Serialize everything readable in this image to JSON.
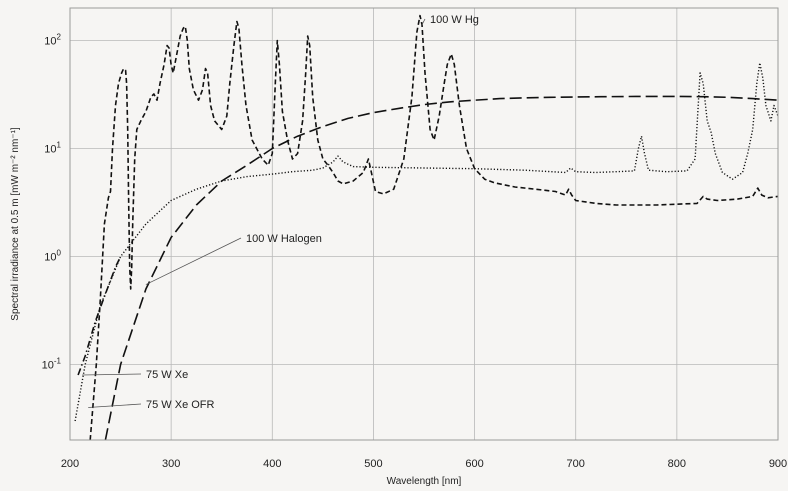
{
  "colors": {
    "background": "#f6f5f3",
    "grid": "#b8b8b8",
    "frame": "#9a9a9a",
    "line": "#111111"
  },
  "chart_data": {
    "type": "line",
    "title": "",
    "xlabel": "Wavelength [nm]",
    "ylabel": "Spectral irradiance at 0.5 m [mW m⁻² nm⁻¹]",
    "xlim": [
      200,
      900
    ],
    "ylim": [
      0.02,
      200
    ],
    "yscale": "log",
    "grid": true,
    "x_ticks": [
      "200",
      "300",
      "400",
      "500",
      "600",
      "700",
      "800",
      "900"
    ],
    "y_ticks": [
      {
        "value": 0.1,
        "base": "10",
        "exp": "-1"
      },
      {
        "value": 1,
        "base": "10",
        "exp": "0"
      },
      {
        "value": 10,
        "base": "10",
        "exp": "1"
      },
      {
        "value": 100,
        "base": "10",
        "exp": "2"
      }
    ],
    "annotations": [
      {
        "text": "100 W Hg",
        "series": "100 W Hg"
      },
      {
        "text": "100 W Halogen",
        "series": "100 W Halogen"
      },
      {
        "text": "75 W Xe",
        "series": "75 W Xe"
      },
      {
        "text": "75 W Xe OFR",
        "series": "75 W Xe OFR"
      }
    ],
    "series": [
      {
        "name": "100 W Hg",
        "dash": "dashed",
        "points": [
          [
            220,
            0.02
          ],
          [
            226,
            0.1
          ],
          [
            230,
            0.4
          ],
          [
            234,
            2
          ],
          [
            238,
            3.5
          ],
          [
            240,
            4
          ],
          [
            242,
            10
          ],
          [
            245,
            25
          ],
          [
            248,
            40
          ],
          [
            251,
            50
          ],
          [
            253,
            55
          ],
          [
            255,
            53
          ],
          [
            256,
            40
          ],
          [
            257,
            15
          ],
          [
            258,
            3
          ],
          [
            259,
            0.8
          ],
          [
            260,
            0.5
          ],
          [
            261,
            0.8
          ],
          [
            262,
            2
          ],
          [
            264,
            8
          ],
          [
            266,
            15
          ],
          [
            270,
            18
          ],
          [
            275,
            22
          ],
          [
            280,
            30
          ],
          [
            283,
            32
          ],
          [
            286,
            28
          ],
          [
            289,
            40
          ],
          [
            293,
            60
          ],
          [
            296,
            90
          ],
          [
            298,
            85
          ],
          [
            300,
            60
          ],
          [
            302,
            50
          ],
          [
            305,
            70
          ],
          [
            309,
            110
          ],
          [
            312,
            130
          ],
          [
            314,
            135
          ],
          [
            316,
            100
          ],
          [
            318,
            55
          ],
          [
            322,
            35
          ],
          [
            327,
            28
          ],
          [
            331,
            35
          ],
          [
            334,
            55
          ],
          [
            336,
            50
          ],
          [
            339,
            25
          ],
          [
            343,
            18
          ],
          [
            350,
            15
          ],
          [
            355,
            20
          ],
          [
            358,
            40
          ],
          [
            362,
            90
          ],
          [
            365,
            150
          ],
          [
            367,
            130
          ],
          [
            370,
            60
          ],
          [
            374,
            25
          ],
          [
            380,
            12
          ],
          [
            390,
            8
          ],
          [
            396,
            7
          ],
          [
            400,
            9
          ],
          [
            403,
            40
          ],
          [
            405,
            100
          ],
          [
            407,
            60
          ],
          [
            410,
            22
          ],
          [
            415,
            12
          ],
          [
            420,
            8
          ],
          [
            425,
            9
          ],
          [
            430,
            18
          ],
          [
            433,
            50
          ],
          [
            435,
            110
          ],
          [
            437,
            90
          ],
          [
            440,
            30
          ],
          [
            445,
            12
          ],
          [
            450,
            8
          ],
          [
            455,
            7
          ],
          [
            460,
            6
          ],
          [
            465,
            5
          ],
          [
            470,
            4.7
          ],
          [
            480,
            5
          ],
          [
            490,
            6
          ],
          [
            495,
            8
          ],
          [
            498,
            6
          ],
          [
            502,
            4
          ],
          [
            510,
            3.8
          ],
          [
            520,
            4.2
          ],
          [
            530,
            8
          ],
          [
            538,
            30
          ],
          [
            543,
            120
          ],
          [
            546,
            170
          ],
          [
            548,
            140
          ],
          [
            551,
            50
          ],
          [
            556,
            15
          ],
          [
            560,
            12
          ],
          [
            565,
            20
          ],
          [
            570,
            40
          ],
          [
            573,
            60
          ],
          [
            577,
            75
          ],
          [
            580,
            60
          ],
          [
            585,
            25
          ],
          [
            592,
            10
          ],
          [
            600,
            6.5
          ],
          [
            610,
            5.2
          ],
          [
            620,
            4.8
          ],
          [
            640,
            4.4
          ],
          [
            660,
            4.2
          ],
          [
            680,
            4
          ],
          [
            690,
            3.7
          ],
          [
            693,
            4.2
          ],
          [
            696,
            3.7
          ],
          [
            700,
            3.3
          ],
          [
            720,
            3.1
          ],
          [
            740,
            3
          ],
          [
            760,
            3
          ],
          [
            780,
            3
          ],
          [
            800,
            3.05
          ],
          [
            820,
            3.1
          ],
          [
            826,
            3.6
          ],
          [
            830,
            3.4
          ],
          [
            840,
            3.3
          ],
          [
            860,
            3.4
          ],
          [
            875,
            3.6
          ],
          [
            880,
            4.3
          ],
          [
            884,
            3.7
          ],
          [
            890,
            3.5
          ],
          [
            900,
            3.6
          ]
        ]
      },
      {
        "name": "100 W Halogen",
        "dash": "longdash",
        "points": [
          [
            235,
            0.02
          ],
          [
            250,
            0.1
          ],
          [
            275,
            0.5
          ],
          [
            300,
            1.5
          ],
          [
            325,
            3
          ],
          [
            350,
            5
          ],
          [
            375,
            7
          ],
          [
            400,
            10
          ],
          [
            425,
            13
          ],
          [
            450,
            16
          ],
          [
            475,
            19
          ],
          [
            500,
            21.5
          ],
          [
            525,
            23.5
          ],
          [
            550,
            25.5
          ],
          [
            575,
            27
          ],
          [
            600,
            28
          ],
          [
            625,
            29
          ],
          [
            650,
            29.5
          ],
          [
            675,
            29.8
          ],
          [
            700,
            30
          ],
          [
            725,
            30.2
          ],
          [
            750,
            30.3
          ],
          [
            775,
            30.4
          ],
          [
            800,
            30.4
          ],
          [
            825,
            30.2
          ],
          [
            850,
            29.8
          ],
          [
            875,
            29
          ],
          [
            900,
            28
          ]
        ]
      },
      {
        "name": "75 W Xe",
        "dash": "dotted",
        "points": [
          [
            205,
            0.03
          ],
          [
            215,
            0.1
          ],
          [
            230,
            0.35
          ],
          [
            250,
            1
          ],
          [
            275,
            2
          ],
          [
            300,
            3.3
          ],
          [
            325,
            4.2
          ],
          [
            350,
            5
          ],
          [
            375,
            5.5
          ],
          [
            400,
            5.8
          ],
          [
            420,
            6.1
          ],
          [
            440,
            6.3
          ],
          [
            450,
            6.6
          ],
          [
            460,
            7.5
          ],
          [
            465,
            8.5
          ],
          [
            470,
            7.5
          ],
          [
            480,
            6.8
          ],
          [
            500,
            6.7
          ],
          [
            550,
            6.6
          ],
          [
            600,
            6.5
          ],
          [
            650,
            6.3
          ],
          [
            690,
            6
          ],
          [
            695,
            6.6
          ],
          [
            700,
            6.1
          ],
          [
            720,
            6
          ],
          [
            740,
            6.1
          ],
          [
            758,
            6.2
          ],
          [
            762,
            10
          ],
          [
            765,
            13
          ],
          [
            768,
            9
          ],
          [
            772,
            6.3
          ],
          [
            790,
            6.1
          ],
          [
            810,
            6.2
          ],
          [
            818,
            8
          ],
          [
            823,
            50
          ],
          [
            826,
            40
          ],
          [
            830,
            18
          ],
          [
            834,
            14
          ],
          [
            838,
            9
          ],
          [
            845,
            6
          ],
          [
            855,
            5.2
          ],
          [
            865,
            6
          ],
          [
            870,
            9
          ],
          [
            875,
            15
          ],
          [
            879,
            40
          ],
          [
            882,
            62
          ],
          [
            885,
            45
          ],
          [
            888,
            25
          ],
          [
            893,
            18
          ],
          [
            896,
            25
          ],
          [
            900,
            20
          ]
        ]
      },
      {
        "name": "75 W Xe OFR",
        "dash": "dashdot",
        "points": [
          [
            208,
            0.08
          ],
          [
            215,
            0.12
          ],
          [
            225,
            0.25
          ],
          [
            235,
            0.45
          ],
          [
            245,
            0.8
          ],
          [
            250,
            1.0
          ]
        ]
      }
    ]
  }
}
